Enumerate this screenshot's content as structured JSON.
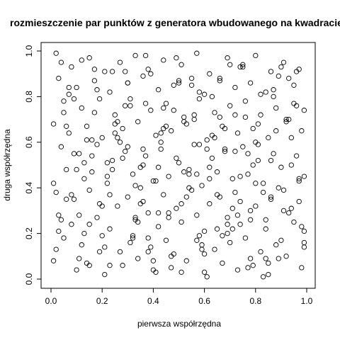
{
  "chart_data": {
    "type": "scatter",
    "title": "rozmieszczenie par punktów z generatora wbudowanego na kwadracie",
    "xlabel": "pierwsza współrzędna",
    "ylabel": "druga współrzędna",
    "xlim": [
      0,
      1
    ],
    "ylim": [
      0,
      1
    ],
    "x_ticks": [
      "0.0",
      "0.2",
      "0.4",
      "0.6",
      "0.8",
      "1.0"
    ],
    "y_ticks": [
      "0.0",
      "0.2",
      "0.4",
      "0.6",
      "0.8",
      "1.0"
    ],
    "grid": false,
    "marker": "open-circle",
    "point_color": "#000000",
    "n_points_note": "approximate positions of a uniform random sample",
    "x": [
      0.02,
      0.08,
      0.15,
      0.21,
      0.27,
      0.33,
      0.38,
      0.44,
      0.51,
      0.57,
      0.62,
      0.69,
      0.74,
      0.8,
      0.86,
      0.91,
      0.97,
      0.03,
      0.1,
      0.17,
      0.23,
      0.3,
      0.36,
      0.42,
      0.48,
      0.55,
      0.6,
      0.66,
      0.72,
      0.78,
      0.84,
      0.89,
      0.95,
      0.05,
      0.12,
      0.19,
      0.25,
      0.31,
      0.39,
      0.45,
      0.52,
      0.58,
      0.64,
      0.7,
      0.76,
      0.82,
      0.88,
      0.93,
      0.99,
      0.01,
      0.07,
      0.14,
      0.2,
      0.28,
      0.34,
      0.41,
      0.47,
      0.53,
      0.61,
      0.67,
      0.73,
      0.79,
      0.85,
      0.92,
      0.98,
      0.04,
      0.11,
      0.18,
      0.24,
      0.29,
      0.37,
      0.43,
      0.5,
      0.56,
      0.63,
      0.68,
      0.75,
      0.81,
      0.87,
      0.94,
      0.96,
      0.06,
      0.13,
      0.16,
      0.22,
      0.32,
      0.35,
      0.4,
      0.46,
      0.54,
      0.59,
      0.65,
      0.71,
      0.77,
      0.83,
      0.9,
      0.99,
      0.02,
      0.09,
      0.15,
      0.26,
      0.3,
      0.36,
      0.44,
      0.49,
      0.55,
      0.62,
      0.66,
      0.72,
      0.8,
      0.86,
      0.91,
      0.97,
      0.03,
      0.08,
      0.18,
      0.23,
      0.33,
      0.38,
      0.42,
      0.51,
      0.57,
      0.6,
      0.69,
      0.74,
      0.78,
      0.84,
      0.93,
      0.95,
      0.05,
      0.12,
      0.2,
      0.27,
      0.31,
      0.39,
      0.45,
      0.48,
      0.58,
      0.64,
      0.7,
      0.76,
      0.82,
      0.88,
      0.92,
      0.99,
      0.01,
      0.1,
      0.14,
      0.21,
      0.28,
      0.34,
      0.41,
      0.47,
      0.53,
      0.61,
      0.67,
      0.73,
      0.79,
      0.85,
      0.89,
      0.98,
      0.04,
      0.07,
      0.17,
      0.25,
      0.29,
      0.37,
      0.43,
      0.5,
      0.56,
      0.63,
      0.68,
      0.75,
      0.81,
      0.87,
      0.94,
      0.96,
      0.06,
      0.11,
      0.19,
      0.22,
      0.32,
      0.35,
      0.4,
      0.46,
      0.54,
      0.59,
      0.65,
      0.71,
      0.77,
      0.83,
      0.9,
      0.97,
      0.09,
      0.13,
      0.16,
      0.24,
      0.26,
      0.3,
      0.36,
      0.44,
      0.49,
      0.52,
      0.58,
      0.62,
      0.66,
      0.72,
      0.8,
      0.86,
      0.02,
      0.08,
      0.15,
      0.23,
      0.33,
      0.38,
      0.42,
      0.51,
      0.57,
      0.6,
      0.69,
      0.74,
      0.78,
      0.84,
      0.91,
      0.99,
      0.05,
      0.12,
      0.18,
      0.27,
      0.31,
      0.39,
      0.45,
      0.48,
      0.55,
      0.64,
      0.7,
      0.76,
      0.82,
      0.88,
      0.93,
      0.95,
      0.03,
      0.1,
      0.2,
      0.21,
      0.28,
      0.34,
      0.41,
      0.47,
      0.53,
      0.61,
      0.67,
      0.73,
      0.79,
      0.85,
      0.89,
      0.98,
      0.07,
      0.14,
      0.17,
      0.25,
      0.29,
      0.37,
      0.43,
      0.5,
      0.56,
      0.63,
      0.68,
      0.75,
      0.81,
      0.87,
      0.92,
      0.96,
      0.04,
      0.11,
      0.19,
      0.22,
      0.32,
      0.35,
      0.4,
      0.46,
      0.54,
      0.59,
      0.65,
      0.71,
      0.77,
      0.83,
      0.94,
      0.97,
      0.06,
      0.09,
      0.16,
      0.24,
      0.26,
      0.3,
      0.36,
      0.44,
      0.49,
      0.52,
      0.58,
      0.62,
      0.66,
      0.72,
      0.8,
      0.9,
      0.01,
      0.13,
      0.15,
      0.23,
      0.33,
      0.38,
      0.42,
      0.51,
      0.57,
      0.6,
      0.69,
      0.74,
      0.78,
      0.84,
      0.86,
      0.99
    ],
    "y": [
      0.99,
      0.93,
      0.97,
      0.91,
      0.95,
      0.98,
      0.92,
      0.96,
      0.94,
      0.99,
      0.9,
      0.97,
      0.93,
      0.98,
      0.91,
      0.95,
      0.92,
      0.88,
      0.84,
      0.87,
      0.82,
      0.86,
      0.89,
      0.83,
      0.85,
      0.88,
      0.81,
      0.87,
      0.84,
      0.86,
      0.82,
      0.89,
      0.85,
      0.78,
      0.75,
      0.79,
      0.72,
      0.76,
      0.74,
      0.77,
      0.71,
      0.79,
      0.73,
      0.76,
      0.78,
      0.72,
      0.75,
      0.7,
      0.74,
      0.68,
      0.64,
      0.67,
      0.62,
      0.66,
      0.69,
      0.63,
      0.65,
      0.68,
      0.61,
      0.67,
      0.64,
      0.66,
      0.62,
      0.69,
      0.65,
      0.58,
      0.55,
      0.59,
      0.52,
      0.56,
      0.54,
      0.57,
      0.51,
      0.59,
      0.53,
      0.56,
      0.58,
      0.52,
      0.55,
      0.5,
      0.54,
      0.48,
      0.44,
      0.47,
      0.42,
      0.46,
      0.49,
      0.43,
      0.45,
      0.48,
      0.41,
      0.47,
      0.44,
      0.46,
      0.42,
      0.49,
      0.45,
      0.38,
      0.35,
      0.39,
      0.32,
      0.36,
      0.34,
      0.37,
      0.31,
      0.39,
      0.33,
      0.36,
      0.38,
      0.32,
      0.35,
      0.3,
      0.34,
      0.28,
      0.24,
      0.27,
      0.22,
      0.26,
      0.29,
      0.23,
      0.25,
      0.28,
      0.21,
      0.27,
      0.24,
      0.26,
      0.22,
      0.29,
      0.25,
      0.18,
      0.15,
      0.19,
      0.12,
      0.16,
      0.14,
      0.17,
      0.11,
      0.19,
      0.13,
      0.16,
      0.18,
      0.12,
      0.15,
      0.1,
      0.14,
      0.08,
      0.04,
      0.07,
      0.02,
      0.06,
      0.09,
      0.03,
      0.05,
      0.08,
      0.01,
      0.07,
      0.04,
      0.06,
      0.02,
      0.09,
      0.05,
      0.95,
      0.81,
      0.73,
      0.64,
      0.91,
      0.77,
      0.6,
      0.86,
      0.7,
      0.63,
      0.57,
      0.93,
      0.68,
      0.8,
      0.62,
      0.76,
      0.35,
      0.28,
      0.12,
      0.45,
      0.19,
      0.33,
      0.08,
      0.27,
      0.4,
      0.15,
      0.22,
      0.31,
      0.05,
      0.38,
      0.17,
      0.43,
      0.55,
      0.51,
      0.61,
      0.48,
      0.69,
      0.58,
      0.5,
      0.66,
      0.53,
      0.47,
      0.59,
      0.44,
      0.71,
      0.56,
      0.42,
      0.52,
      0.13,
      0.37,
      0.24,
      0.06,
      0.41,
      0.18,
      0.29,
      0.03,
      0.46,
      0.11,
      0.2,
      0.34,
      0.09,
      0.26,
      0.39,
      0.16,
      0.73,
      0.96,
      0.83,
      0.6,
      0.79,
      0.9,
      0.67,
      0.74,
      0.85,
      0.62,
      0.94,
      0.71,
      0.81,
      0.65,
      0.88,
      0.77,
      0.21,
      0.48,
      0.32,
      0.14,
      0.53,
      0.25,
      0.43,
      0.1,
      0.36,
      0.57,
      0.19,
      0.28,
      0.5,
      0.07,
      0.4,
      0.23,
      0.84,
      0.61,
      0.92,
      0.68,
      0.76,
      0.98,
      0.64,
      0.87,
      0.72,
      0.8,
      0.66,
      0.94,
      0.59,
      0.83,
      0.7,
      0.91,
      0.26,
      0.09,
      0.33,
      0.51,
      0.18,
      0.4,
      0.04,
      0.29,
      0.46,
      0.13,
      0.37,
      0.22,
      0.55,
      0.01,
      0.31,
      0.44,
      0.67,
      0.79,
      0.54,
      0.91,
      0.62,
      0.86,
      0.57,
      0.75,
      0.97,
      0.69,
      0.82,
      0.49,
      0.88,
      0.72,
      0.6,
      0.93,
      0.42,
      0.2,
      0.06,
      0.37,
      0.27,
      0.12,
      0.49,
      0.33,
      0.17,
      0.03,
      0.24,
      0.45,
      0.3,
      0.09,
      0.36,
      0.21
    ]
  }
}
